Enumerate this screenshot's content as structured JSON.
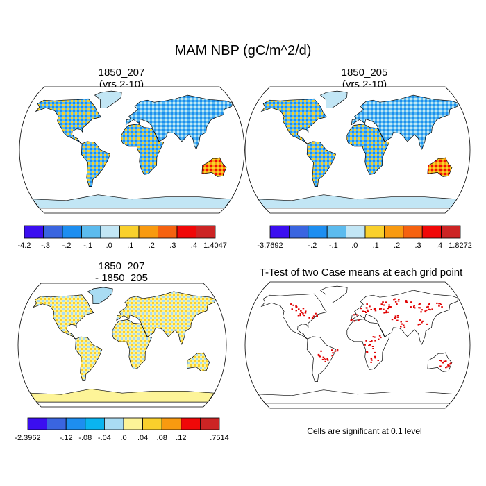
{
  "title": "MAM NBP (gC/m^2/d)",
  "chart_data": [
    {
      "type": "heatmap",
      "id": "panel-1850-207",
      "title": "1850_207",
      "subtitle": "(yrs 2-10)",
      "projection": "robinson",
      "colorbar": {
        "colors": [
          "#3b0ef0",
          "#3a65e0",
          "#1d8ef0",
          "#5cbbee",
          "#c2e6f5",
          "#f9d02c",
          "#f89a10",
          "#f56210",
          "#f00808",
          "#cc2424"
        ],
        "tick_labels": [
          "-4.2",
          "-.3",
          "-.2",
          "-.1",
          ".0",
          ".1",
          ".2",
          ".3",
          ".4",
          "1.4047"
        ]
      }
    },
    {
      "type": "heatmap",
      "id": "panel-1850-205",
      "title": "1850_205",
      "subtitle": "(yrs 2-10)",
      "projection": "robinson",
      "colorbar": {
        "colors": [
          "#3b0ef0",
          "#3a65e0",
          "#1d8ef0",
          "#5cbbee",
          "#c2e6f5",
          "#f9d02c",
          "#f89a10",
          "#f56210",
          "#f00808",
          "#cc2424"
        ],
        "tick_labels": [
          "-3.7692",
          "",
          "-.2",
          "-.1",
          ".0",
          ".1",
          ".2",
          ".3",
          ".4",
          "1.8272"
        ]
      }
    },
    {
      "type": "heatmap",
      "id": "panel-difference",
      "title": "1850_207",
      "subtitle": "- 1850_205",
      "projection": "robinson",
      "colorbar": {
        "colors": [
          "#3b0ef0",
          "#3a65e0",
          "#1d8ef0",
          "#0ab4f0",
          "#a9dcf3",
          "#fdf498",
          "#f9d02c",
          "#f89a10",
          "#f00808",
          "#cc2424"
        ],
        "tick_labels": [
          "-2.3962",
          "",
          "-.12",
          "-.08",
          "-.04",
          ".0",
          ".04",
          ".08",
          ".12",
          "",
          ".7514"
        ]
      }
    },
    {
      "type": "heatmap",
      "id": "panel-ttest",
      "title": "T-Test of two Case means at each grid point",
      "projection": "robinson",
      "significance_color": "#e00000",
      "note": "Cells are significant at 0.1 level"
    }
  ]
}
